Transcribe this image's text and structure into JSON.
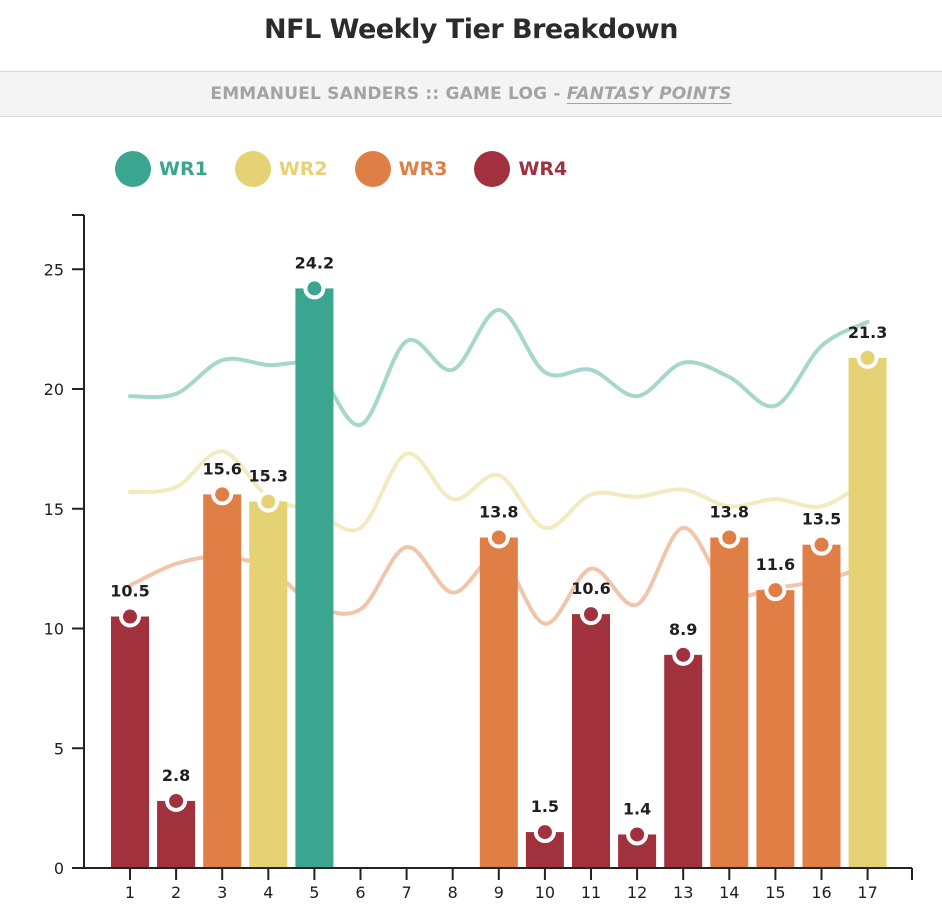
{
  "title": "NFL Weekly Tier Breakdown",
  "subtitle": {
    "main": "EMMANUEL SANDERS :: GAME LOG - ",
    "link": "FANTASY POINTS"
  },
  "colors": {
    "WR1": "#3aa68f",
    "WR2": "#e4d274",
    "WR3": "#e07f45",
    "WR4": "#a2313e",
    "axis": "#222222"
  },
  "legend": [
    {
      "key": "WR1",
      "label": "WR1"
    },
    {
      "key": "WR2",
      "label": "WR2"
    },
    {
      "key": "WR3",
      "label": "WR3"
    },
    {
      "key": "WR4",
      "label": "WR4"
    }
  ],
  "chart_data": {
    "type": "bar",
    "title": "NFL Weekly Tier Breakdown",
    "xlabel": "",
    "ylabel": "",
    "ylim": [
      0,
      27
    ],
    "yticks": [
      0,
      5,
      10,
      15,
      20,
      25
    ],
    "categories": [
      "1",
      "2",
      "3",
      "4",
      "5",
      "6",
      "7",
      "8",
      "9",
      "10",
      "11",
      "12",
      "13",
      "14",
      "15",
      "16",
      "17"
    ],
    "bars": [
      {
        "week": "1",
        "value": 10.5,
        "label": "10.5",
        "tier": "WR4"
      },
      {
        "week": "2",
        "value": 2.8,
        "label": "2.8",
        "tier": "WR4"
      },
      {
        "week": "3",
        "value": 15.6,
        "label": "15.6",
        "tier": "WR3"
      },
      {
        "week": "4",
        "value": 15.3,
        "label": "15.3",
        "tier": "WR2"
      },
      {
        "week": "5",
        "value": 24.2,
        "label": "24.2",
        "tier": "WR1"
      },
      {
        "week": "9",
        "value": 13.8,
        "label": "13.8",
        "tier": "WR3"
      },
      {
        "week": "10",
        "value": 1.5,
        "label": "1.5",
        "tier": "WR4"
      },
      {
        "week": "11",
        "value": 10.6,
        "label": "10.6",
        "tier": "WR4"
      },
      {
        "week": "12",
        "value": 1.4,
        "label": "1.4",
        "tier": "WR4"
      },
      {
        "week": "13",
        "value": 8.9,
        "label": "8.9",
        "tier": "WR4"
      },
      {
        "week": "14",
        "value": 13.8,
        "label": "13.8",
        "tier": "WR3"
      },
      {
        "week": "15",
        "value": 11.6,
        "label": "11.6",
        "tier": "WR3"
      },
      {
        "week": "16",
        "value": 13.5,
        "label": "13.5",
        "tier": "WR3"
      },
      {
        "week": "17",
        "value": 21.3,
        "label": "21.3",
        "tier": "WR2"
      }
    ],
    "tier_lines": [
      {
        "name": "WR1",
        "values": [
          19.7,
          19.8,
          21.2,
          21.0,
          20.9,
          18.5,
          22.0,
          20.8,
          23.3,
          20.7,
          20.8,
          19.7,
          21.1,
          20.5,
          19.3,
          21.8,
          22.8
        ]
      },
      {
        "name": "WR2",
        "values": [
          15.7,
          15.9,
          17.4,
          15.5,
          14.9,
          14.2,
          17.3,
          15.4,
          16.4,
          14.2,
          15.6,
          15.5,
          15.8,
          15.1,
          15.4,
          15.1,
          16.2
        ]
      },
      {
        "name": "WR3",
        "values": [
          11.8,
          12.7,
          13.0,
          12.5,
          11.0,
          10.8,
          13.4,
          11.5,
          13.0,
          10.2,
          12.5,
          11.0,
          14.2,
          11.5,
          11.7,
          12.0,
          12.6
        ]
      }
    ]
  }
}
